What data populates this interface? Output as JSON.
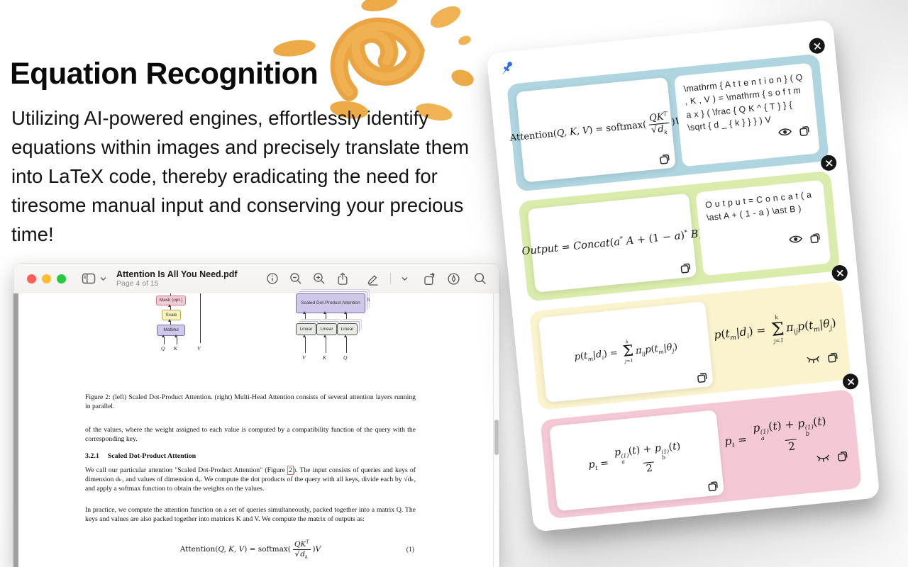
{
  "hero": {
    "heading": "Equation Recognition",
    "description": "Utilizing AI-powered engines, effortlessly identify equations within images and precisely translate them into LaTeX code, thereby eradicating the need for tiresome manual input and conserving your precious time!"
  },
  "icons": {
    "toolbar": [
      "sidebar-icon",
      "chevron-down-icon",
      "info-icon",
      "zoom-out-icon",
      "zoom-in-icon",
      "share-icon",
      "markup-pencil-icon",
      "chevron-down-icon",
      "rotate-icon",
      "pen-nib-circle-icon",
      "search-icon"
    ],
    "card": [
      "pin-icon",
      "close-icon",
      "eye-open-icon",
      "eye-closed-icon",
      "copy-icon"
    ]
  },
  "pdf_window": {
    "title": "Attention Is All You Need.pdf",
    "subtitle": "Page 4 of 15",
    "traffic_colors": {
      "red": "#ff5f57",
      "yellow": "#febc2e",
      "green": "#28c840"
    },
    "figure": {
      "mask": "Mask (opt.)",
      "scale": "Scale",
      "matmul": "MatMul",
      "q": "Q",
      "k": "K",
      "v": "V",
      "sdpa": "Scaled Dot-Product Attention",
      "h": "h",
      "linear": "Linear",
      "v2": "V",
      "k2": "K",
      "q2": "Q"
    },
    "caption": "Figure 2: (left) Scaled Dot-Product Attention.  (right) Multi-Head Attention consists of several attention layers running in parallel.",
    "para_values": "of the values, where the weight assigned to each value is computed by a compatibility function of the query with the corresponding key.",
    "section_num": "3.2.1",
    "section_title": "Scaled Dot-Product Attention",
    "para_call_pre": "We call our particular attention \"Scaled Dot-Product Attention\" (Figure ",
    "figref": "2",
    "para_call_post": "). The input consists of queries and keys of dimension dₖ, and values of dimension dᵥ. We compute the dot products of the query with all keys, divide each by √dₖ, and apply a softmax function to obtain the weights on the values.",
    "para_practice": "In practice, we compute the attention function on a set of queries simultaneously, packed together into a matrix Q. The keys and values are also packed together into matrices K and V. We compute the matrix of outputs as:",
    "equation_number": "(1)",
    "equation_math": [
      {
        "k": "r",
        "v": "Attention("
      },
      {
        "k": "i",
        "v": "Q, K, V"
      },
      {
        "k": "r",
        "v": ") = softmax("
      },
      {
        "k": "frac",
        "n": [
          {
            "k": "i",
            "v": "QK"
          },
          {
            "k": "sup",
            "v": "T"
          }
        ],
        "d": [
          {
            "k": "sqrt",
            "v": [
              {
                "k": "i",
                "v": "d"
              },
              {
                "k": "sub",
                "v": "k"
              }
            ]
          }
        ]
      },
      {
        "k": "r",
        "v": ")"
      },
      {
        "k": "i",
        "v": "V"
      }
    ]
  },
  "card": {
    "rows": [
      {
        "color": "#aed5e0",
        "math": [
          {
            "k": "r",
            "v": "Attention("
          },
          {
            "k": "i",
            "v": "Q, K, V"
          },
          {
            "k": "r",
            "v": ") = softmax("
          },
          {
            "k": "frac",
            "n": [
              {
                "k": "i",
                "v": "QK"
              },
              {
                "k": "sup",
                "v": "T"
              }
            ],
            "d": [
              {
                "k": "sqrt",
                "v": [
                  {
                    "k": "i",
                    "v": "d"
                  },
                  {
                    "k": "sub",
                    "v": "k"
                  }
                ]
              }
            ]
          },
          {
            "k": "r",
            "v": ")"
          },
          {
            "k": "i",
            "v": "V"
          }
        ],
        "latex": "\\mathrm { A t t e n t i o n } ( Q , K , V ) = \\mathrm { s o f t m a x } ( \\frac { Q K ^ { T } } { \\sqrt { d _ { k } } } ) V"
      },
      {
        "color": "#d9ecab",
        "math": [
          {
            "k": "i",
            "v": "Output"
          },
          {
            "k": "r",
            "v": " = "
          },
          {
            "k": "i",
            "v": "Concat"
          },
          {
            "k": "r",
            "v": "("
          },
          {
            "k": "i",
            "v": "a"
          },
          {
            "k": "sup",
            "v": "*"
          },
          {
            "k": "i",
            "v": " A"
          },
          {
            "k": "r",
            "v": " + (1 − "
          },
          {
            "k": "i",
            "v": "a"
          },
          {
            "k": "r",
            "v": ")"
          },
          {
            "k": "sup",
            "v": "*"
          },
          {
            "k": "i",
            "v": " B"
          },
          {
            "k": "r",
            "v": ")"
          }
        ],
        "latex": "O u t p u t = C o n c a t ( a \\ast A + ( 1 - a ) \\ast B )"
      },
      {
        "color": "#faf3cd",
        "math": [
          {
            "k": "i",
            "v": "p"
          },
          {
            "k": "r",
            "v": "("
          },
          {
            "k": "i",
            "v": "t"
          },
          {
            "k": "sub",
            "v": "m"
          },
          {
            "k": "r",
            "v": "|"
          },
          {
            "k": "i",
            "v": "d"
          },
          {
            "k": "sub",
            "v": "i"
          },
          {
            "k": "r",
            "v": ") = "
          },
          {
            "k": "sum",
            "top": "k",
            "bot": "j=1"
          },
          {
            "k": "i",
            "v": "π"
          },
          {
            "k": "sub",
            "v": "ij"
          },
          {
            "k": "i",
            "v": "p"
          },
          {
            "k": "r",
            "v": "("
          },
          {
            "k": "i",
            "v": "t"
          },
          {
            "k": "sub",
            "v": "m"
          },
          {
            "k": "r",
            "v": "|"
          },
          {
            "k": "i",
            "v": "θ"
          },
          {
            "k": "sub",
            "v": "j"
          },
          {
            "k": "r",
            "v": ")"
          }
        ]
      },
      {
        "color": "#f5c8d6",
        "math": [
          {
            "k": "i",
            "v": "p"
          },
          {
            "k": "sub",
            "v": "t"
          },
          {
            "k": "r",
            "v": " = "
          },
          {
            "k": "frac",
            "n": [
              {
                "k": "i",
                "v": "p"
              },
              {
                "k": "subsup",
                "sup": "(1)",
                "sub": "a"
              },
              {
                "k": "r",
                "v": "("
              },
              {
                "k": "i",
                "v": "t"
              },
              {
                "k": "r",
                "v": ") + "
              },
              {
                "k": "i",
                "v": "p"
              },
              {
                "k": "subsup",
                "sup": "(1)",
                "sub": "b"
              },
              {
                "k": "r",
                "v": "("
              },
              {
                "k": "i",
                "v": "t"
              },
              {
                "k": "r",
                "v": ")"
              }
            ],
            "d": [
              {
                "k": "r",
                "v": "2"
              }
            ]
          }
        ]
      }
    ]
  }
}
